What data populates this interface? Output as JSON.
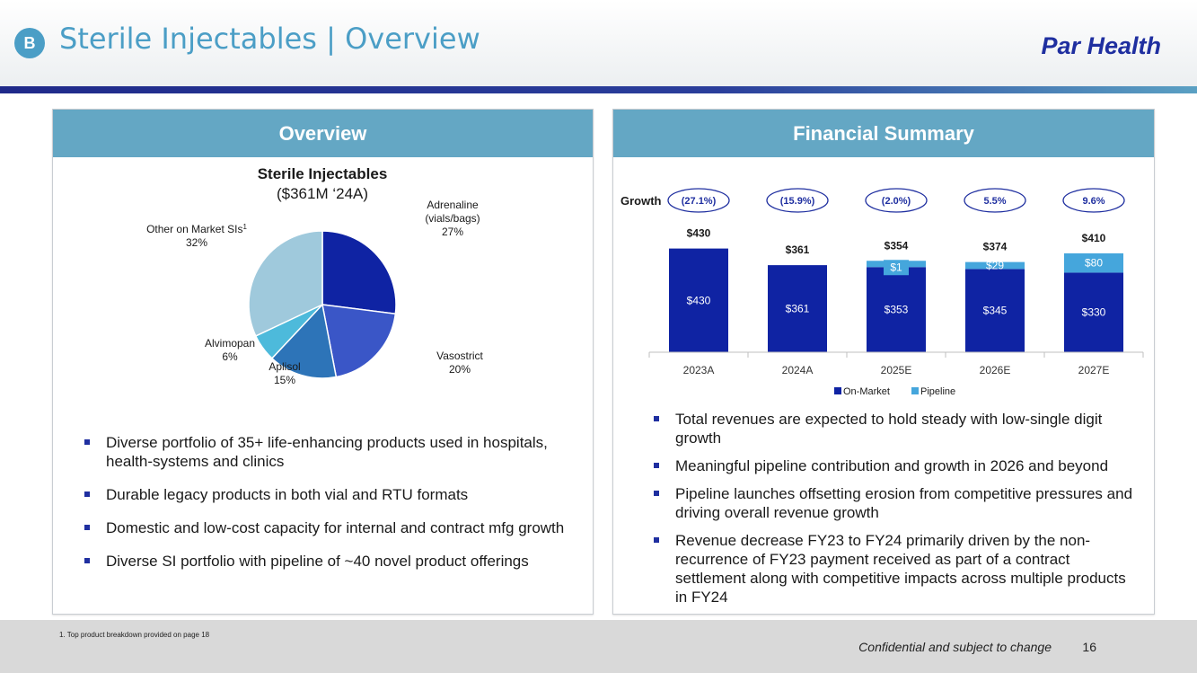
{
  "header": {
    "badge": "B",
    "title": "Sterile Injectables | Overview",
    "brand": "Par Health"
  },
  "overview": {
    "heading": "Overview",
    "pie_title": "Sterile Injectables",
    "pie_subtitle": "($361M ‘24A)",
    "slices": [
      {
        "label_lines": [
          "Adrenaline",
          "(vials/bags)",
          "27%"
        ],
        "value": 27,
        "color": "#0f23a3"
      },
      {
        "label_lines": [
          "Vasostrict",
          "20%"
        ],
        "value": 20,
        "color": "#3a56c7"
      },
      {
        "label_lines": [
          "Aplisol",
          "15%"
        ],
        "value": 15,
        "color": "#2d74b8"
      },
      {
        "label_lines": [
          "Alvimopan",
          "6%"
        ],
        "value": 6,
        "color": "#4dbadb"
      },
      {
        "label_lines": [
          "Other on Market SIs",
          "32%"
        ],
        "label_sup": "1",
        "value": 32,
        "color": "#9fc9dc"
      }
    ],
    "bullets": [
      "Diverse portfolio of 35+ life-enhancing products used in hospitals, health-systems and clinics",
      "Durable legacy products in both vial and RTU formats",
      "Domestic and low-cost capacity for internal and contract mfg growth",
      "Diverse SI portfolio with pipeline of ~40 novel product offerings"
    ]
  },
  "financial": {
    "heading": "Financial Summary",
    "growth_label": "Growth",
    "bullets": [
      "Total revenues are expected to hold steady with low-single digit growth",
      "Meaningful pipeline contribution and growth in 2026 and beyond",
      "Pipeline launches offsetting erosion from competitive pressures and driving overall revenue growth",
      "Revenue decrease FY23 to FY24 primarily driven by the non-recurrence of FY23 payment received as part of a contract settlement along with competitive impacts across multiple products in FY24"
    ]
  },
  "chart_data": {
    "type": "bar",
    "stacked": true,
    "categories": [
      "2023A",
      "2024A",
      "2025E",
      "2026E",
      "2027E"
    ],
    "series": [
      {
        "name": "On-Market",
        "values": [
          430,
          361,
          353,
          345,
          330
        ],
        "labels": [
          "$430",
          "$361",
          "$353",
          "$345",
          "$330"
        ],
        "color": "#0f23a3"
      },
      {
        "name": "Pipeline",
        "values": [
          0,
          0,
          1,
          29,
          80
        ],
        "labels": [
          "",
          "",
          "$1",
          "$29",
          "$80"
        ],
        "color": "#45a6dc"
      }
    ],
    "totals": [
      "$430",
      "$361",
      "$354",
      "$374",
      "$410"
    ],
    "growth": [
      "(27.1%)",
      "(15.9%)",
      "(2.0%)",
      "5.5%",
      "9.6%"
    ],
    "ylim": [
      0,
      450
    ],
    "legend_position": "bottom-center"
  },
  "footer": {
    "footnote": "1.   Top product breakdown provided on page 18",
    "confidential": "Confidential and subject to change",
    "page": "16"
  }
}
